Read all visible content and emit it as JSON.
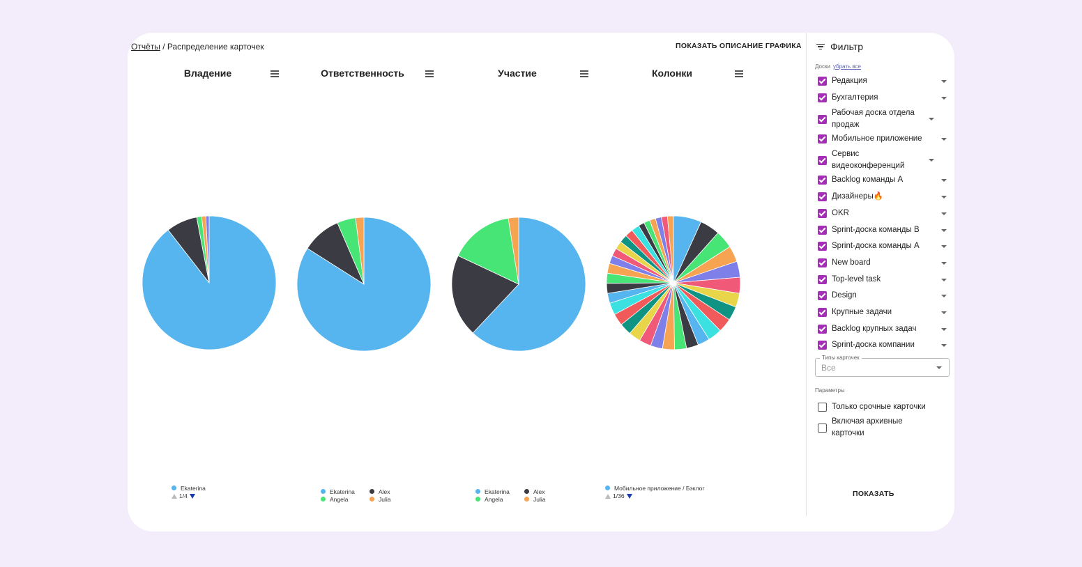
{
  "breadcrumb": {
    "root": "Отчёты",
    "separator": " / ",
    "current": "Распределение карточек"
  },
  "show_description_label": "ПОКАЗАТЬ ОПИСАНИЕ ГРАФИКА",
  "charts": [
    {
      "title": "Владение",
      "pager": "1/4"
    },
    {
      "title": "Ответственность"
    },
    {
      "title": "Участие"
    },
    {
      "title": "Колонки",
      "pager": "1/36"
    }
  ],
  "chart_data": [
    {
      "type": "pie",
      "title": "Владение",
      "slices": [
        {
          "label": "Ekaterina",
          "value": 89.5,
          "color": "#56b4ef"
        },
        {
          "label": "",
          "value": 7.5,
          "color": "#3b3b43"
        },
        {
          "label": "",
          "value": 1.2,
          "color": "#47e476"
        },
        {
          "label": "",
          "value": 1.0,
          "color": "#f6a352"
        },
        {
          "label": "",
          "value": 0.8,
          "color": "#7e7fe8"
        }
      ],
      "legend": [
        "Ekaterina"
      ]
    },
    {
      "type": "pie",
      "title": "Ответственность",
      "slices": [
        {
          "label": "Ekaterina",
          "value": 84,
          "color": "#56b4ef"
        },
        {
          "label": "Alex",
          "value": 9.5,
          "color": "#3b3b43"
        },
        {
          "label": "Angela",
          "value": 4.5,
          "color": "#47e476"
        },
        {
          "label": "Julia",
          "value": 2,
          "color": "#f6a352"
        }
      ],
      "legend": [
        "Ekaterina",
        "Alex",
        "Angela",
        "Julia"
      ]
    },
    {
      "type": "pie",
      "title": "Участие",
      "slices": [
        {
          "label": "Ekaterina",
          "value": 62,
          "color": "#56b4ef"
        },
        {
          "label": "Alex",
          "value": 20,
          "color": "#3b3b43"
        },
        {
          "label": "Angela",
          "value": 15.5,
          "color": "#47e476"
        },
        {
          "label": "Julia",
          "value": 2.5,
          "color": "#f6a352"
        }
      ],
      "legend": [
        "Ekaterina",
        "Alex",
        "Angela",
        "Julia"
      ]
    },
    {
      "type": "pie",
      "title": "Колонки",
      "slices": [
        {
          "label": "Мобильное приложение / Бэклог",
          "value": 7,
          "color": "#56b4ef"
        },
        {
          "label": "",
          "value": 5,
          "color": "#3b3b43"
        },
        {
          "label": "",
          "value": 4.5,
          "color": "#47e476"
        },
        {
          "label": "",
          "value": 4,
          "color": "#f6a352"
        },
        {
          "label": "",
          "value": 4,
          "color": "#7e7fe8"
        },
        {
          "label": "",
          "value": 4,
          "color": "#f05a78"
        },
        {
          "label": "",
          "value": 3.5,
          "color": "#e8d54a"
        },
        {
          "label": "",
          "value": 3.5,
          "color": "#0f9483"
        },
        {
          "label": "",
          "value": 3.5,
          "color": "#f05a5a"
        },
        {
          "label": "",
          "value": 3.5,
          "color": "#3be0e0"
        },
        {
          "label": "",
          "value": 3,
          "color": "#56b4ef"
        },
        {
          "label": "",
          "value": 3,
          "color": "#3b3b43"
        },
        {
          "label": "",
          "value": 3,
          "color": "#47e476"
        },
        {
          "label": "",
          "value": 3,
          "color": "#f6a352"
        },
        {
          "label": "",
          "value": 3,
          "color": "#7e7fe8"
        },
        {
          "label": "",
          "value": 3,
          "color": "#f05a78"
        },
        {
          "label": "",
          "value": 3,
          "color": "#e8d54a"
        },
        {
          "label": "",
          "value": 3,
          "color": "#0f9483"
        },
        {
          "label": "",
          "value": 3,
          "color": "#f05a5a"
        },
        {
          "label": "",
          "value": 3,
          "color": "#3be0e0"
        },
        {
          "label": "",
          "value": 2.5,
          "color": "#56b4ef"
        },
        {
          "label": "",
          "value": 2.5,
          "color": "#3b3b43"
        },
        {
          "label": "",
          "value": 2.5,
          "color": "#47e476"
        },
        {
          "label": "",
          "value": 2.5,
          "color": "#f6a352"
        },
        {
          "label": "",
          "value": 2,
          "color": "#7e7fe8"
        },
        {
          "label": "",
          "value": 2,
          "color": "#f05a78"
        },
        {
          "label": "",
          "value": 2,
          "color": "#e8d54a"
        },
        {
          "label": "",
          "value": 2,
          "color": "#0f9483"
        },
        {
          "label": "",
          "value": 2,
          "color": "#f05a5a"
        },
        {
          "label": "",
          "value": 2,
          "color": "#3be0e0"
        },
        {
          "label": "",
          "value": 1.5,
          "color": "#3b3b43"
        },
        {
          "label": "",
          "value": 1.5,
          "color": "#47e476"
        },
        {
          "label": "",
          "value": 1.5,
          "color": "#f6a352"
        },
        {
          "label": "",
          "value": 1.5,
          "color": "#7e7fe8"
        },
        {
          "label": "",
          "value": 1.5,
          "color": "#f05a78"
        },
        {
          "label": "",
          "value": 1.5,
          "color": "#f6a352"
        }
      ],
      "legend": [
        "Мобильное приложение / Бэклог"
      ]
    }
  ],
  "filter": {
    "title": "Фильтр",
    "boards_label": "Доски",
    "remove_all": "убрать все",
    "boards": [
      "Редакция",
      "Бухгалтерия",
      "Рабочая доска отдела продаж",
      "Мобильное приложение",
      "Сервис видеоконференций",
      "Backlog команды А",
      "Дизайнеры🔥",
      "OKR",
      "Sprint-доска команды B",
      "Sprint-доска команды A",
      "New board",
      "Top-level task",
      "Design",
      "Крупные задачи",
      "Backlog крупных задач",
      "Sprint-доска компании"
    ],
    "card_types_label": "Типы карточек",
    "card_types_value": "Все",
    "params_label": "Параметры",
    "params": [
      "Только срочные карточки",
      "Включая архивные карточки"
    ],
    "show_button": "ПОКАЗАТЬ"
  }
}
